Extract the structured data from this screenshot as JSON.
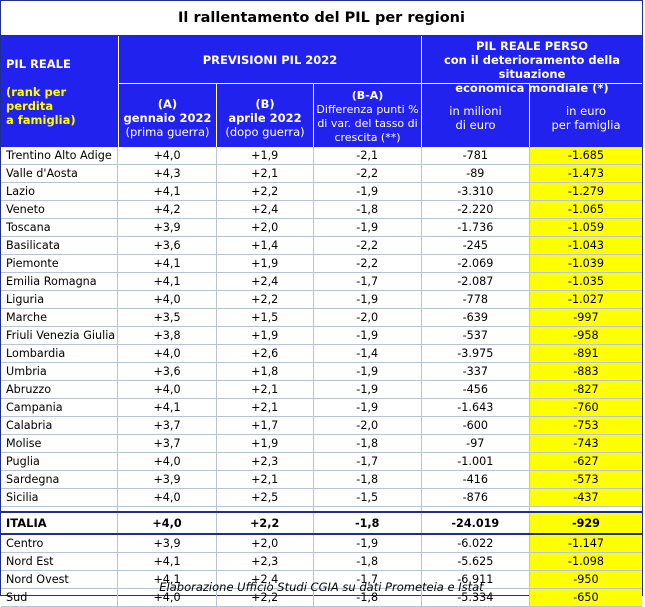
{
  "title": "Il rallentamento del PIL per regioni",
  "header": {
    "pil_reale": "PIL REALE",
    "rank_lines": [
      "(rank per",
      "perdita",
      "a famiglia)"
    ],
    "previsioni": "PREVISIONI PIL 2022",
    "perso_lines": [
      "PIL REALE PERSO",
      "con il deterioramento della situazione",
      "economica mondiale (*)"
    ],
    "col_a": [
      "(A)",
      "gennaio 2022",
      "(prima guerra)"
    ],
    "col_b": [
      "(B)",
      "aprile 2022",
      "(dopo guerra)"
    ],
    "col_ba": [
      "(B-A)",
      "Differenza punti %",
      "di var. del tasso di",
      "crescita (**)"
    ],
    "col_milioni": [
      "in milioni",
      "di euro"
    ],
    "col_famiglia": [
      "in euro",
      "per famiglia"
    ]
  },
  "rows": [
    [
      "Trentino Alto Adige",
      "+4,0",
      "+1,9",
      "-2,1",
      "-781",
      "-1.685"
    ],
    [
      "Valle d'Aosta",
      "+4,3",
      "+2,1",
      "-2,2",
      "-89",
      "-1.473"
    ],
    [
      "Lazio",
      "+4,1",
      "+2,2",
      "-1,9",
      "-3.310",
      "-1.279"
    ],
    [
      "Veneto",
      "+4,2",
      "+2,4",
      "-1,8",
      "-2.220",
      "-1.065"
    ],
    [
      "Toscana",
      "+3,9",
      "+2,0",
      "-1,9",
      "-1.736",
      "-1.059"
    ],
    [
      "Basilicata",
      "+3,6",
      "+1,4",
      "-2,2",
      "-245",
      "-1.043"
    ],
    [
      "Piemonte",
      "+4,1",
      "+1,9",
      "-2,2",
      "-2.069",
      "-1.039"
    ],
    [
      "Emilia Romagna",
      "+4,1",
      "+2,4",
      "-1,7",
      "-2.087",
      "-1.035"
    ],
    [
      "Liguria",
      "+4,0",
      "+2,2",
      "-1,9",
      "-778",
      "-1.027"
    ],
    [
      "Marche",
      "+3,5",
      "+1,5",
      "-2,0",
      "-639",
      "-997"
    ],
    [
      "Friuli Venezia Giulia",
      "+3,8",
      "+1,9",
      "-1,9",
      "-537",
      "-958"
    ],
    [
      "Lombardia",
      "+4,0",
      "+2,6",
      "-1,4",
      "-3.975",
      "-891"
    ],
    [
      "Umbria",
      "+3,6",
      "+1,8",
      "-1,9",
      "-337",
      "-883"
    ],
    [
      "Abruzzo",
      "+4,0",
      "+2,1",
      "-1,9",
      "-456",
      "-827"
    ],
    [
      "Campania",
      "+4,1",
      "+2,1",
      "-1,9",
      "-1.643",
      "-760"
    ],
    [
      "Calabria",
      "+3,7",
      "+1,7",
      "-2,0",
      "-600",
      "-753"
    ],
    [
      "Molise",
      "+3,7",
      "+1,9",
      "-1,8",
      "-97",
      "-743"
    ],
    [
      "Puglia",
      "+4,0",
      "+2,3",
      "-1,7",
      "-1.001",
      "-627"
    ],
    [
      "Sardegna",
      "+3,9",
      "+2,1",
      "-1,8",
      "-416",
      "-573"
    ],
    [
      "Sicilia",
      "+4,0",
      "+2,5",
      "-1,5",
      "-876",
      "-437"
    ]
  ],
  "italia": [
    "ITALIA",
    "+4,0",
    "+2,2",
    "-1,8",
    "-24.019",
    "-929"
  ],
  "macro_rows": [
    [
      "Centro",
      "+3,9",
      "+2,0",
      "-1,9",
      "-6.022",
      "-1.147"
    ],
    [
      "Nord Est",
      "+4,1",
      "+2,3",
      "-1,8",
      "-5.625",
      "-1.098"
    ],
    [
      "Nord Ovest",
      "+4,1",
      "+2,4",
      "-1,7",
      "-6.911",
      "-950"
    ],
    [
      "Sud",
      "+4,0",
      "+2,2",
      "-1,8",
      "-5.334",
      "-650"
    ]
  ],
  "footer": "Elaborazione Ufficio Studi CGIA su dati Prometeia e Istat",
  "colors": {
    "header_blue": "#2222ee",
    "highlight_yellow": "#ffff00",
    "border": "#1f2f8f"
  }
}
